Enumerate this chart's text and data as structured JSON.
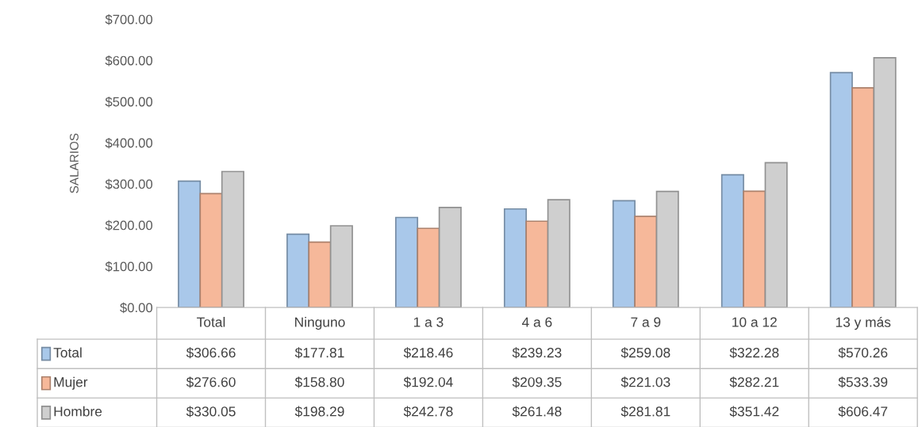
{
  "chart_data": {
    "type": "bar",
    "ylabel": "SALARIOS",
    "categories": [
      "Total",
      "Ninguno",
      "1 a 3",
      "4 a 6",
      "7 a 9",
      "10 a 12",
      "13 y más"
    ],
    "series": [
      {
        "name": "Total",
        "color": "#a9c8ea",
        "values": [
          306.66,
          177.81,
          218.46,
          239.23,
          259.08,
          322.28,
          570.26
        ],
        "value_labels": [
          "$306.66",
          "$177.81",
          "$218.46",
          "$239.23",
          "$259.08",
          "$322.28",
          "$570.26"
        ]
      },
      {
        "name": "Mujer",
        "color": "#f6b89a",
        "values": [
          276.6,
          158.8,
          192.04,
          209.35,
          221.03,
          282.21,
          533.39
        ],
        "value_labels": [
          "$276.60",
          "$158.80",
          "$192.04",
          "$209.35",
          "$221.03",
          "$282.21",
          "$533.39"
        ]
      },
      {
        "name": "Hombre",
        "color": "#cfcfcf",
        "values": [
          330.05,
          198.29,
          242.78,
          261.48,
          281.81,
          351.42,
          606.47
        ],
        "value_labels": [
          "$330.05",
          "$198.29",
          "$242.78",
          "$261.48",
          "$281.81",
          "$351.42",
          "$606.47"
        ]
      }
    ],
    "ylim": [
      0,
      700
    ],
    "yticks": [
      {
        "value": 0,
        "label": "$0.00"
      },
      {
        "value": 100,
        "label": "$100.00"
      },
      {
        "value": 200,
        "label": "$200.00"
      },
      {
        "value": 300,
        "label": "$300.00"
      },
      {
        "value": 400,
        "label": "$400.00"
      },
      {
        "value": 500,
        "label": "$500.00"
      },
      {
        "value": 600,
        "label": "$600.00"
      },
      {
        "value": 700,
        "label": "$700.00"
      }
    ],
    "tick_labels": "y",
    "legend": "bottom",
    "grid": false
  }
}
